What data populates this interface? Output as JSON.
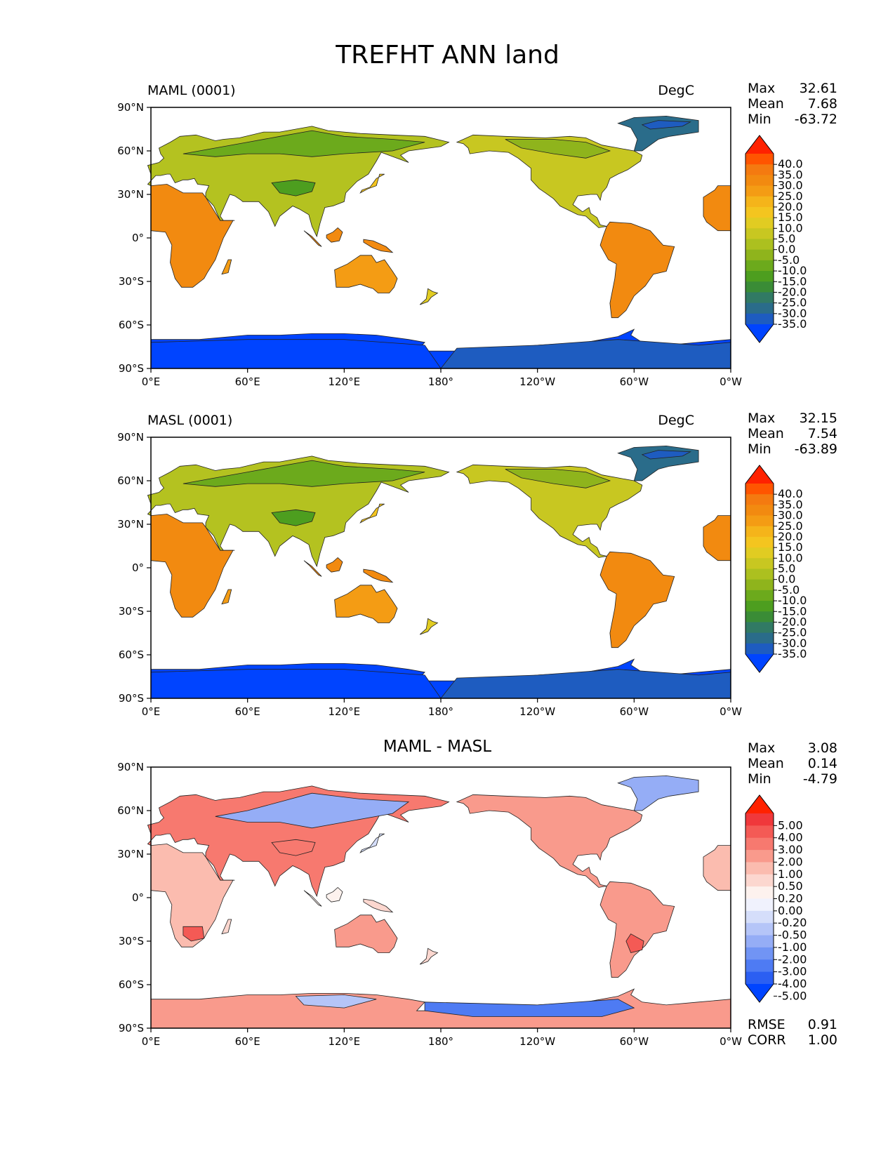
{
  "figure": {
    "title": "TREFHT ANN land"
  },
  "panels": [
    {
      "id": "test",
      "left_label": "MAML (0001)",
      "center_label": "",
      "units": "DegC",
      "stats": [
        {
          "label": "Max",
          "value": "32.61"
        },
        {
          "label": "Mean",
          "value": "7.68"
        },
        {
          "label": "Min",
          "value": "-63.72"
        }
      ],
      "colorbar": {
        "levels": [
          "40.0",
          "35.0",
          "30.0",
          "25.0",
          "20.0",
          "15.0",
          "10.0",
          "5.0",
          "0.0",
          "-5.0",
          "-10.0",
          "-15.0",
          "-20.0",
          "-25.0",
          "-30.0",
          "-35.0"
        ],
        "colors": [
          "#ff2200",
          "#ff5500",
          "#f47a10",
          "#f28a10",
          "#f49c14",
          "#f5b41a",
          "#f4c51f",
          "#e1cc22",
          "#c8c721",
          "#acc01f",
          "#8fb41c",
          "#6caa1c",
          "#4d9e1f",
          "#3a8c36",
          "#317a64",
          "#2a6c8a",
          "#1e5cc0",
          "#0044ff"
        ]
      },
      "extra_stats": []
    },
    {
      "id": "reference",
      "left_label": "MASL (0001)",
      "center_label": "",
      "units": "DegC",
      "stats": [
        {
          "label": "Max",
          "value": "32.15"
        },
        {
          "label": "Mean",
          "value": "7.54"
        },
        {
          "label": "Min",
          "value": "-63.89"
        }
      ],
      "colorbar": {
        "levels": [
          "40.0",
          "35.0",
          "30.0",
          "25.0",
          "20.0",
          "15.0",
          "10.0",
          "5.0",
          "0.0",
          "-5.0",
          "-10.0",
          "-15.0",
          "-20.0",
          "-25.0",
          "-30.0",
          "-35.0"
        ],
        "colors": [
          "#ff2200",
          "#ff5500",
          "#f47a10",
          "#f28a10",
          "#f49c14",
          "#f5b41a",
          "#f4c51f",
          "#e1cc22",
          "#c8c721",
          "#acc01f",
          "#8fb41c",
          "#6caa1c",
          "#4d9e1f",
          "#3a8c36",
          "#317a64",
          "#2a6c8a",
          "#1e5cc0",
          "#0044ff"
        ]
      },
      "extra_stats": []
    },
    {
      "id": "difference",
      "left_label": "",
      "center_label": "MAML - MASL",
      "units": "",
      "stats": [
        {
          "label": "Max",
          "value": "3.08"
        },
        {
          "label": "Mean",
          "value": "0.14"
        },
        {
          "label": "Min",
          "value": "-4.79"
        }
      ],
      "colorbar": {
        "levels": [
          "5.00",
          "4.00",
          "3.00",
          "2.00",
          "1.00",
          "0.50",
          "0.20",
          "0.00",
          "-0.20",
          "-0.50",
          "-1.00",
          "-2.00",
          "-3.00",
          "-4.00",
          "-5.00"
        ],
        "colors": [
          "#ff2200",
          "#f0383b",
          "#f45a55",
          "#f7796f",
          "#f99a8c",
          "#fbbcaf",
          "#fcd7cf",
          "#fdf2ee",
          "#f0f2fd",
          "#d5defa",
          "#b5c5f8",
          "#95adf6",
          "#7194f4",
          "#4e7bf3",
          "#2b5ff2",
          "#0044ff"
        ]
      },
      "extra_stats": [
        {
          "label": "RMSE",
          "value": "0.91"
        },
        {
          "label": "CORR",
          "value": "1.00"
        }
      ]
    }
  ],
  "axes": {
    "x_ticks": [
      "0°E",
      "60°E",
      "120°E",
      "180°",
      "120°W",
      "60°W",
      "0°W"
    ],
    "y_ticks": [
      "90°N",
      "60°N",
      "30°N",
      "0°",
      "30°S",
      "60°S",
      "90°S"
    ]
  }
}
